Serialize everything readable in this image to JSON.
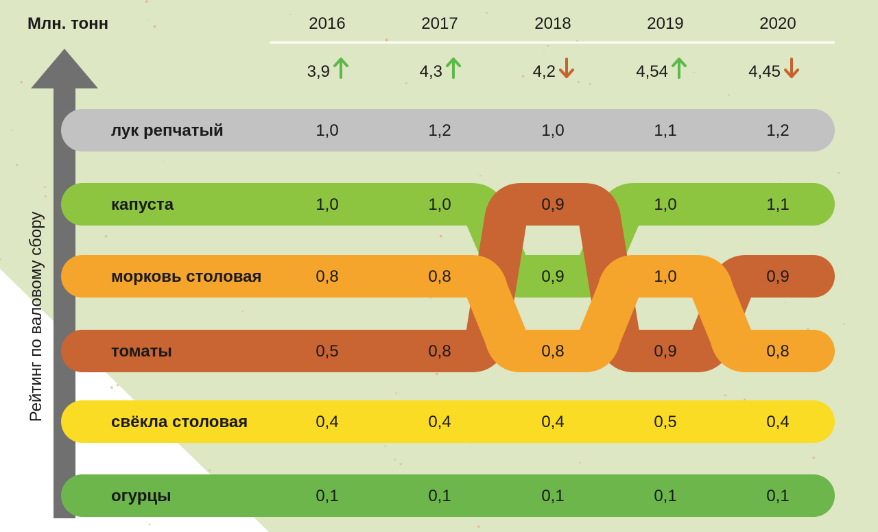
{
  "unit_label": "Млн. тонн",
  "axis_label": "Рейтинг по валовому сбору",
  "years": [
    "2016",
    "2017",
    "2018",
    "2019",
    "2020"
  ],
  "totals": [
    {
      "value": "3,9",
      "trend": "up"
    },
    {
      "value": "4,3",
      "trend": "up"
    },
    {
      "value": "4,2",
      "trend": "down"
    },
    {
      "value": "4,54",
      "trend": "up"
    },
    {
      "value": "4,45",
      "trend": "down"
    }
  ],
  "colors": {
    "background": "#dde7c4",
    "up_arrow": "#5db84a",
    "down_arrow": "#c8622d",
    "axis_arrow": "#707070"
  },
  "chart_data": {
    "type": "bump",
    "ylabel": "Рейтинг по валовому сбору",
    "unit": "Млн. тонн",
    "x": [
      "2016",
      "2017",
      "2018",
      "2019",
      "2020"
    ],
    "totals": [
      3.9,
      4.3,
      4.2,
      4.54,
      4.45
    ],
    "series": [
      {
        "name": "лук репчатый",
        "color": "#c2c2c2",
        "values": [
          1.0,
          1.2,
          1.0,
          1.1,
          1.2
        ],
        "labels": [
          "1,0",
          "1,2",
          "1,0",
          "1,1",
          "1,2"
        ],
        "ranks": [
          1,
          1,
          1,
          1,
          1
        ]
      },
      {
        "name": "капуста",
        "color": "#8dc540",
        "values": [
          1.0,
          1.0,
          0.9,
          1.0,
          1.1
        ],
        "labels": [
          "1,0",
          "1,0",
          "0,9",
          "1,0",
          "1,1"
        ],
        "ranks": [
          2,
          2,
          3,
          2,
          2
        ]
      },
      {
        "name": "морковь столовая",
        "color": "#f5a42c",
        "values": [
          0.8,
          0.8,
          0.8,
          1.0,
          0.8
        ],
        "labels": [
          "0,8",
          "0,8",
          "0,8",
          "1,0",
          "0,8"
        ],
        "ranks": [
          3,
          3,
          4,
          3,
          4
        ]
      },
      {
        "name": "томаты",
        "color": "#c96433",
        "values": [
          0.5,
          0.8,
          0.9,
          0.9,
          0.9
        ],
        "labels": [
          "0,5",
          "0,8",
          "0,9",
          "0,9",
          "0,9"
        ],
        "ranks": [
          4,
          4,
          2,
          4,
          3
        ]
      },
      {
        "name": "свёкла столовая",
        "color": "#fbdc24",
        "values": [
          0.4,
          0.4,
          0.4,
          0.5,
          0.4
        ],
        "labels": [
          "0,4",
          "0,4",
          "0,4",
          "0,5",
          "0,4"
        ],
        "ranks": [
          5,
          5,
          5,
          5,
          5
        ]
      },
      {
        "name": "огурцы",
        "color": "#6cb64c",
        "values": [
          0.1,
          0.1,
          0.1,
          0.1,
          0.1
        ],
        "labels": [
          "0,1",
          "0,1",
          "0,1",
          "0,1",
          "0,1"
        ],
        "ranks": [
          6,
          6,
          6,
          6,
          6
        ]
      }
    ]
  }
}
